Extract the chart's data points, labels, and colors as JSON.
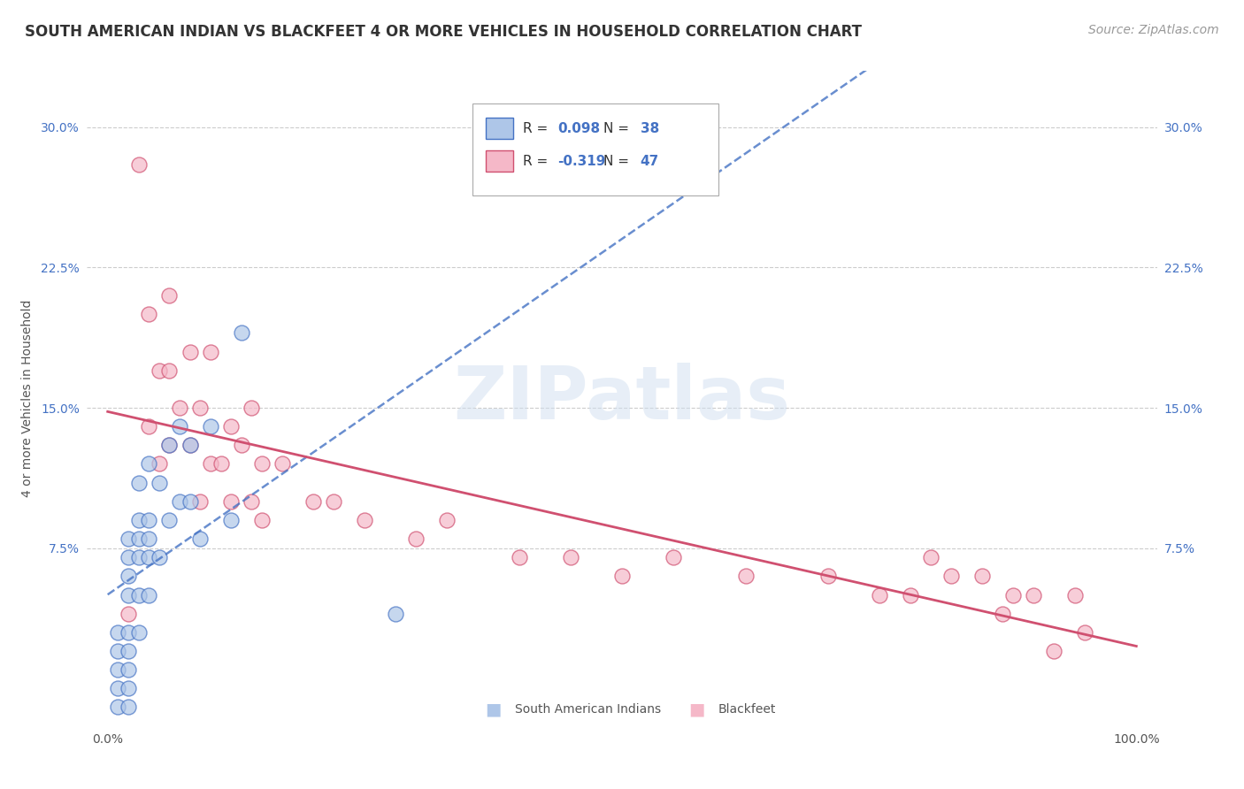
{
  "title": "SOUTH AMERICAN INDIAN VS BLACKFEET 4 OR MORE VEHICLES IN HOUSEHOLD CORRELATION CHART",
  "source": "Source: ZipAtlas.com",
  "ylabel": "4 or more Vehicles in Household",
  "xlim": [
    -0.02,
    1.02
  ],
  "ylim": [
    -0.02,
    0.33
  ],
  "xticks": [
    0.0,
    0.25,
    0.5,
    0.75,
    1.0
  ],
  "xtick_labels": [
    "0.0%",
    "",
    "",
    "",
    "100.0%"
  ],
  "yticks": [
    0.0,
    0.075,
    0.15,
    0.225,
    0.3
  ],
  "ytick_labels": [
    "",
    "7.5%",
    "15.0%",
    "22.5%",
    "30.0%"
  ],
  "r_sa": 0.098,
  "n_sa": 38,
  "r_bf": -0.319,
  "n_bf": 47,
  "color_sa": "#aec6e8",
  "color_bf": "#f5b8c8",
  "line_color_sa": "#4472c4",
  "line_color_bf": "#d05070",
  "background_color": "#ffffff",
  "grid_color": "#cccccc",
  "sa_x": [
    0.01,
    0.01,
    0.01,
    0.01,
    0.01,
    0.02,
    0.02,
    0.02,
    0.02,
    0.02,
    0.02,
    0.02,
    0.02,
    0.02,
    0.03,
    0.03,
    0.03,
    0.03,
    0.03,
    0.03,
    0.04,
    0.04,
    0.04,
    0.04,
    0.04,
    0.05,
    0.05,
    0.06,
    0.06,
    0.07,
    0.07,
    0.08,
    0.08,
    0.09,
    0.1,
    0.12,
    0.13,
    0.28
  ],
  "sa_y": [
    -0.01,
    0.0,
    0.01,
    0.02,
    0.03,
    -0.01,
    0.0,
    0.01,
    0.02,
    0.03,
    0.05,
    0.06,
    0.07,
    0.08,
    0.03,
    0.05,
    0.07,
    0.08,
    0.09,
    0.11,
    0.05,
    0.07,
    0.08,
    0.09,
    0.12,
    0.07,
    0.11,
    0.09,
    0.13,
    0.1,
    0.14,
    0.1,
    0.13,
    0.08,
    0.14,
    0.09,
    0.19,
    0.04
  ],
  "bf_x": [
    0.02,
    0.03,
    0.04,
    0.04,
    0.05,
    0.05,
    0.06,
    0.06,
    0.06,
    0.07,
    0.08,
    0.08,
    0.09,
    0.09,
    0.1,
    0.1,
    0.11,
    0.12,
    0.12,
    0.13,
    0.14,
    0.14,
    0.15,
    0.15,
    0.17,
    0.2,
    0.22,
    0.25,
    0.3,
    0.33,
    0.4,
    0.45,
    0.5,
    0.55,
    0.62,
    0.7,
    0.75,
    0.78,
    0.8,
    0.82,
    0.85,
    0.87,
    0.88,
    0.9,
    0.92,
    0.94,
    0.95
  ],
  "bf_y": [
    0.04,
    0.28,
    0.2,
    0.14,
    0.17,
    0.12,
    0.21,
    0.17,
    0.13,
    0.15,
    0.13,
    0.18,
    0.15,
    0.1,
    0.12,
    0.18,
    0.12,
    0.14,
    0.1,
    0.13,
    0.1,
    0.15,
    0.12,
    0.09,
    0.12,
    0.1,
    0.1,
    0.09,
    0.08,
    0.09,
    0.07,
    0.07,
    0.06,
    0.07,
    0.06,
    0.06,
    0.05,
    0.05,
    0.07,
    0.06,
    0.06,
    0.04,
    0.05,
    0.05,
    0.02,
    0.05,
    0.03
  ],
  "title_fontsize": 12,
  "axis_label_fontsize": 10,
  "tick_fontsize": 10,
  "source_fontsize": 10
}
